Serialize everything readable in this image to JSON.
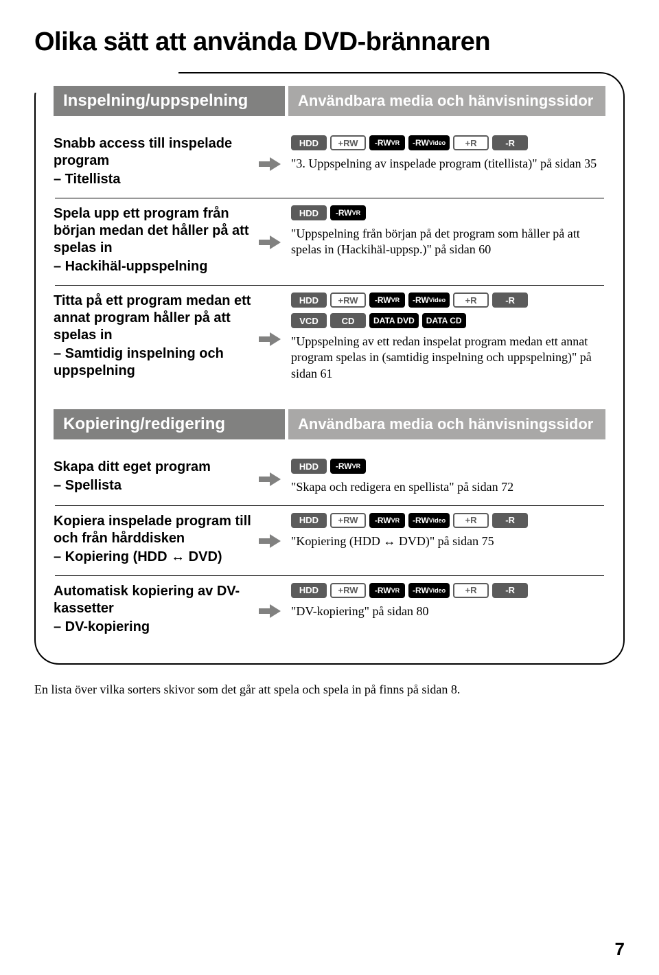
{
  "page_title": "Olika sätt att använda DVD-brännaren",
  "page_number": "7",
  "footer_note": "En lista över vilka sorters skivor som det går att spela och spela in på finns på sidan 8.",
  "sections": [
    {
      "header_left": "Inspelning/uppspelning",
      "header_right": "Användbara media och hänvisningssidor",
      "items": [
        {
          "title": "Snabb access till inspelade program",
          "subtitle": "– Titellista",
          "tags": [
            {
              "text": "HDD",
              "style": "tag-solid-dark"
            },
            {
              "text": "+RW",
              "style": "tag-outline-dark"
            },
            {
              "text": "-RWVR",
              "style": "tag-solid-black",
              "sub": "VR"
            },
            {
              "text": "-RWVideo",
              "style": "tag-solid-black",
              "sub": "Video"
            },
            {
              "text": "+R",
              "style": "tag-outline-dark"
            },
            {
              "text": "-R",
              "style": "tag-solid-dark"
            }
          ],
          "desc": "\"3. Uppspelning av inspelade program (titellista)\" på sidan 35"
        },
        {
          "title": "Spela upp ett program från början medan det håller på att spelas in",
          "subtitle": "– Hackihäl-uppspelning",
          "tags": [
            {
              "text": "HDD",
              "style": "tag-solid-dark"
            },
            {
              "text": "-RWVR",
              "style": "tag-solid-black",
              "sub": "VR"
            }
          ],
          "desc": "\"Uppspelning från början på det program som håller på att spelas in (Hackihäl-uppsp.)\" på sidan 60"
        },
        {
          "title": "Titta på ett program medan ett annat program håller på att spelas in",
          "subtitle": "– Samtidig inspelning och uppspelning",
          "tags": [
            {
              "text": "HDD",
              "style": "tag-solid-dark"
            },
            {
              "text": "+RW",
              "style": "tag-outline-dark"
            },
            {
              "text": "-RWVR",
              "style": "tag-solid-black",
              "sub": "VR"
            },
            {
              "text": "-RWVideo",
              "style": "tag-solid-black",
              "sub": "Video"
            },
            {
              "text": "+R",
              "style": "tag-outline-dark"
            },
            {
              "text": "-R",
              "style": "tag-solid-dark"
            }
          ],
          "tags2": [
            {
              "text": "VCD",
              "style": "tag-solid-dark"
            },
            {
              "text": "CD",
              "style": "tag-solid-filled"
            },
            {
              "text": "DATA DVD",
              "style": "tag-solid-black"
            },
            {
              "text": "DATA CD",
              "style": "tag-solid-black"
            }
          ],
          "desc": "\"Uppspelning av ett redan inspelat program medan ett annat program spelas in (samtidig inspelning och uppspelning)\" på sidan 61"
        }
      ]
    },
    {
      "header_left": "Kopiering/redigering",
      "header_right": "Användbara media och hänvisningssidor",
      "items": [
        {
          "title": "Skapa ditt eget program",
          "subtitle": "– Spellista",
          "tags": [
            {
              "text": "HDD",
              "style": "tag-solid-dark"
            },
            {
              "text": "-RWVR",
              "style": "tag-solid-black",
              "sub": "VR"
            }
          ],
          "desc": "\"Skapa och redigera en spellista\" på sidan 72"
        },
        {
          "title": "Kopiera inspelade program till och från hårddisken",
          "subtitle": "– Kopiering (HDD ↔ DVD)",
          "tags": [
            {
              "text": "HDD",
              "style": "tag-solid-dark"
            },
            {
              "text": "+RW",
              "style": "tag-outline-dark"
            },
            {
              "text": "-RWVR",
              "style": "tag-solid-black",
              "sub": "VR"
            },
            {
              "text": "-RWVideo",
              "style": "tag-solid-black",
              "sub": "Video"
            },
            {
              "text": "+R",
              "style": "tag-outline-dark"
            },
            {
              "text": "-R",
              "style": "tag-solid-dark"
            }
          ],
          "desc": "\"Kopiering (HDD ↔ DVD)\" på sidan 75"
        },
        {
          "title": "Automatisk kopiering av DV-kassetter",
          "subtitle": "– DV-kopiering",
          "tags": [
            {
              "text": "HDD",
              "style": "tag-solid-dark"
            },
            {
              "text": "+RW",
              "style": "tag-outline-dark"
            },
            {
              "text": "-RWVR",
              "style": "tag-solid-black",
              "sub": "VR"
            },
            {
              "text": "-RWVideo",
              "style": "tag-solid-black",
              "sub": "Video"
            },
            {
              "text": "+R",
              "style": "tag-outline-dark"
            },
            {
              "text": "-R",
              "style": "tag-solid-dark"
            }
          ],
          "desc": "\"DV-kopiering\" på sidan 80"
        }
      ]
    }
  ]
}
